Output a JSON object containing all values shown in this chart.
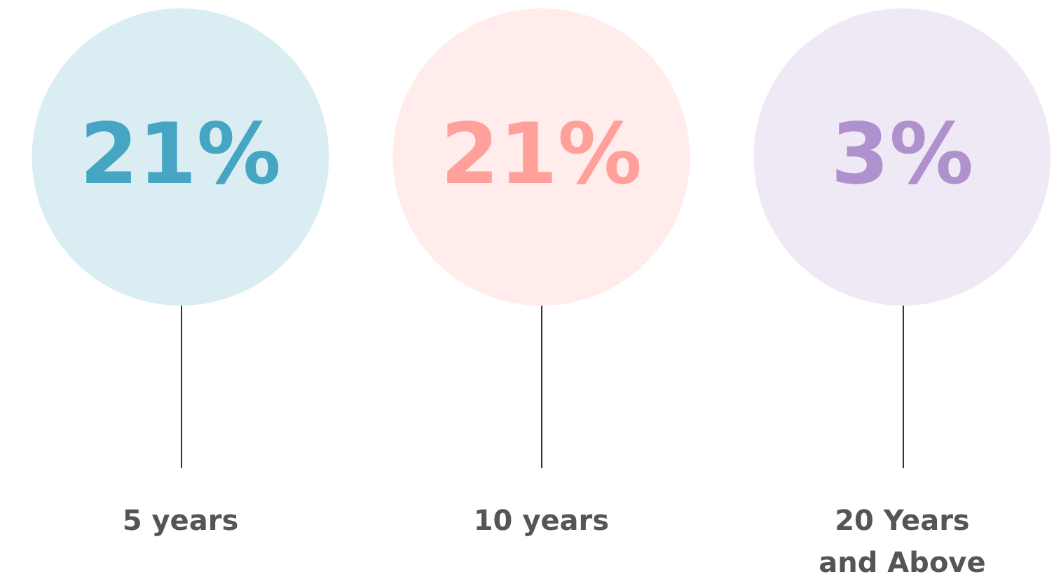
{
  "chart_data": {
    "type": "other",
    "categories": [
      "5 years",
      "10 years",
      "20 Years and Above"
    ],
    "values": [
      21,
      21,
      3
    ],
    "value_labels": [
      "21%",
      "21%",
      "3%"
    ],
    "colors": [
      "#daedf3",
      "#ffeceb",
      "#efe9f5"
    ]
  }
}
